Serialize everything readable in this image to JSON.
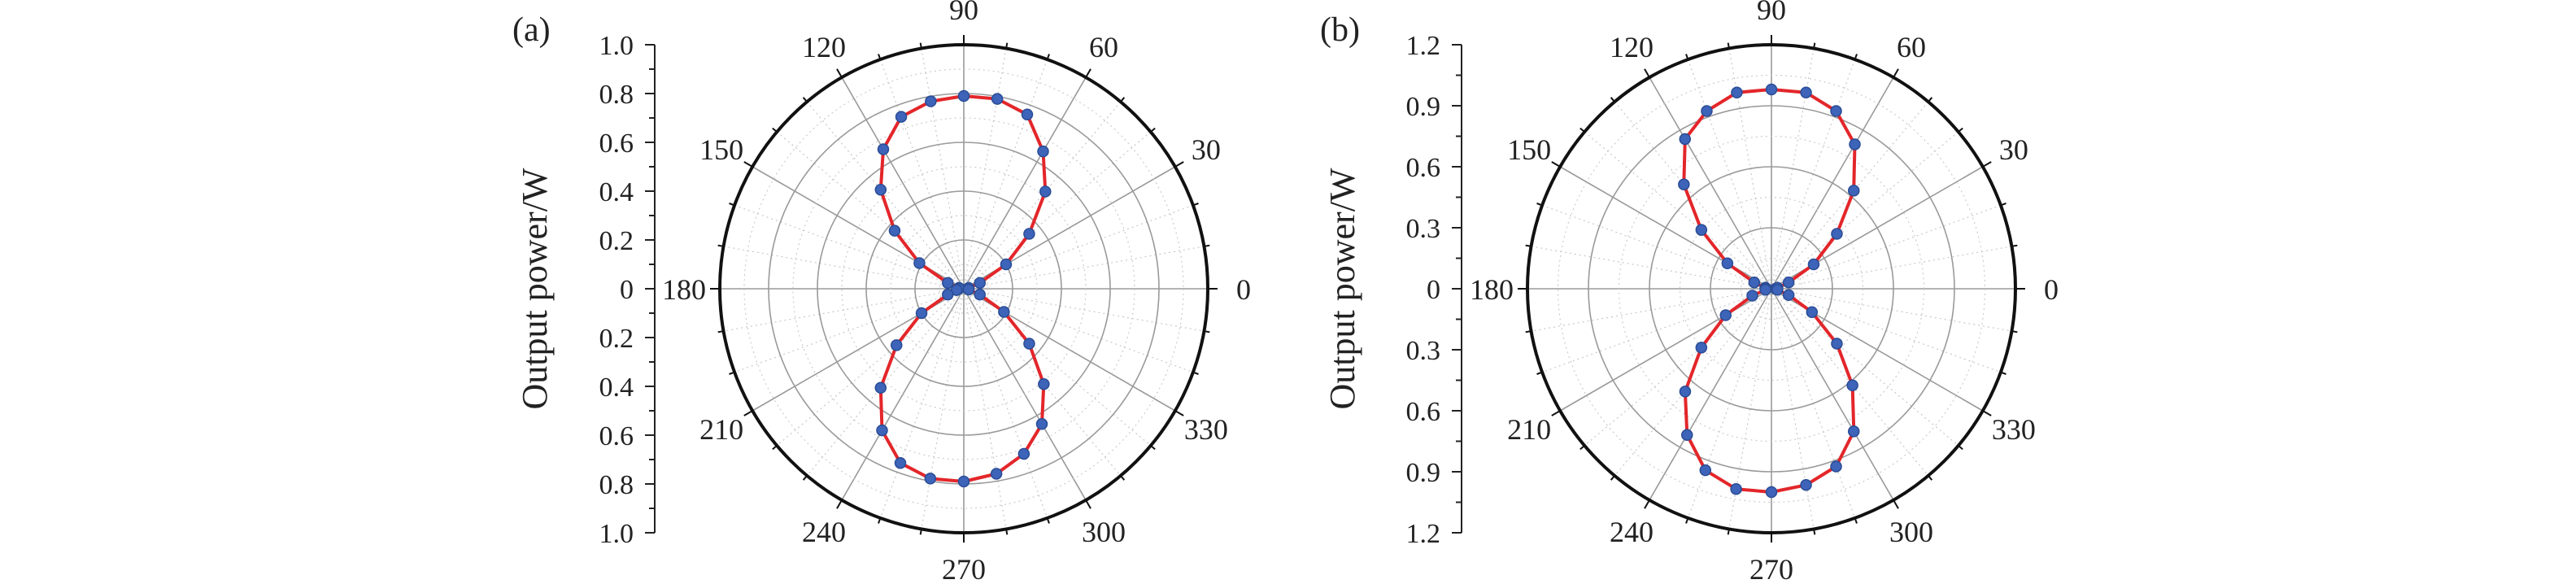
{
  "colors": {
    "background": "#ffffff",
    "outer_ring": "#111111",
    "grid": "#9a9a9a",
    "minor_grid": "#c8c8c8",
    "axis": "#222222",
    "text": "#222222",
    "curve": "#e3262a",
    "marker": "#3d64b8",
    "marker_edge": "#2a4c96"
  },
  "chart_data": [
    {
      "type": "scatter",
      "panel_label": "(a)",
      "title": "",
      "xlabel": "",
      "ylabel": "Output power/W",
      "ylim": [
        0,
        1.0
      ],
      "radial_axis_labels": [
        "1.0",
        "0.8",
        "0.6",
        "0.4",
        "0.2",
        "0",
        "0.2",
        "0.4",
        "0.6",
        "0.8",
        "1.0"
      ],
      "angle_labels": [
        "0",
        "30",
        "60",
        "90",
        "120",
        "150",
        "180",
        "210",
        "240",
        "270",
        "300",
        "330"
      ],
      "grid": true,
      "series": [
        {
          "marker": "circle",
          "line": "line",
          "x": [
            0,
            10,
            20,
            30,
            40,
            50,
            60,
            70,
            80,
            90,
            100,
            110,
            120,
            130,
            140,
            150,
            160,
            170,
            180,
            190,
            200,
            210,
            220,
            230,
            240,
            250,
            260,
            270,
            280,
            290,
            300,
            310,
            320,
            330,
            340,
            350
          ],
          "y": [
            0.02,
            0.02,
            0.07,
            0.2,
            0.35,
            0.52,
            0.65,
            0.76,
            0.79,
            0.79,
            0.78,
            0.75,
            0.66,
            0.53,
            0.37,
            0.21,
            0.07,
            0.02,
            0.02,
            0.03,
            0.07,
            0.2,
            0.36,
            0.53,
            0.67,
            0.76,
            0.79,
            0.79,
            0.77,
            0.72,
            0.64,
            0.51,
            0.35,
            0.19,
            0.07,
            0.02
          ]
        }
      ]
    },
    {
      "type": "scatter",
      "panel_label": "(b)",
      "title": "",
      "xlabel": "",
      "ylabel": "Output power/W",
      "ylim": [
        0,
        1.2
      ],
      "radial_axis_labels": [
        "1.2",
        "0.9",
        "0.6",
        "0.3",
        "0",
        "0.3",
        "0.6",
        "0.9",
        "1.2"
      ],
      "angle_labels": [
        "0",
        "30",
        "60",
        "90",
        "120",
        "150",
        "180",
        "210",
        "240",
        "270",
        "300",
        "330"
      ],
      "grid": true,
      "series": [
        {
          "marker": "circle",
          "line": "line",
          "x": [
            0,
            10,
            20,
            30,
            40,
            50,
            60,
            70,
            80,
            90,
            100,
            110,
            120,
            130,
            140,
            150,
            160,
            170,
            180,
            190,
            200,
            210,
            220,
            230,
            240,
            250,
            260,
            270,
            280,
            290,
            300,
            310,
            320,
            330,
            340,
            350
          ],
          "y": [
            0.02,
            0.03,
            0.09,
            0.24,
            0.42,
            0.63,
            0.82,
            0.93,
            0.98,
            0.98,
            0.98,
            0.93,
            0.85,
            0.67,
            0.45,
            0.25,
            0.09,
            0.03,
            0.03,
            0.03,
            0.1,
            0.26,
            0.45,
            0.66,
            0.83,
            0.95,
            1.0,
            1.0,
            0.98,
            0.93,
            0.81,
            0.62,
            0.42,
            0.23,
            0.09,
            0.03
          ]
        }
      ]
    }
  ]
}
